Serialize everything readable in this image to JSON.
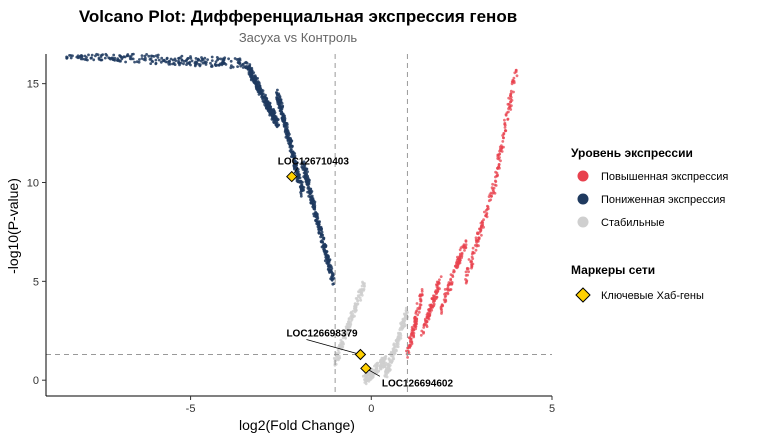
{
  "chart_data": {
    "type": "scatter",
    "title": "Volcano Plot: Дифференциальная экспрессия генов",
    "subtitle": "Засуха vs Контроль",
    "xlabel": "log2(Fold Change)",
    "ylabel": "-log10(P-value)",
    "xlim": [
      -9.0,
      5.0
    ],
    "ylim": [
      -0.8,
      16.5
    ],
    "x_ticks": [
      -5,
      0,
      5
    ],
    "x_tick_labels": [
      "-5",
      "0",
      "5"
    ],
    "y_ticks": [
      0,
      5,
      10,
      15
    ],
    "y_tick_labels": [
      "0",
      "5",
      "10",
      "15"
    ],
    "thresholds": {
      "log2fc": [
        -1,
        1
      ],
      "neg_log10_p": 1.3
    },
    "grid": false,
    "series": [
      {
        "key": "up",
        "color": "#E8414E",
        "approx_bands": [
          {
            "x": [
              1.0,
              1.4
            ],
            "y": [
              1.3,
              4.4
            ]
          },
          {
            "x": [
              1.4,
              1.9
            ],
            "y": [
              2.4,
              5.0
            ]
          },
          {
            "x": [
              1.9,
              2.6
            ],
            "y": [
              3.4,
              7.0
            ]
          },
          {
            "x": [
              2.6,
              3.4
            ],
            "y": [
              5.0,
              9.8
            ]
          },
          {
            "x": [
              3.4,
              4.0
            ],
            "y": [
              9.8,
              15.7
            ]
          }
        ]
      },
      {
        "key": "down",
        "color": "#1F3A5F",
        "approx_bands": [
          {
            "x": [
              -1.05,
              -1.9
            ],
            "y": [
              5.0,
              11.0
            ]
          },
          {
            "x": [
              -1.9,
              -2.6
            ],
            "y": [
              9.5,
              14.5
            ]
          },
          {
            "x": [
              -2.6,
              -3.4
            ],
            "y": [
              13.0,
              15.8
            ]
          },
          {
            "x": [
              -3.4,
              -8.5
            ],
            "y": [
              16.0,
              16.5
            ]
          }
        ]
      },
      {
        "key": "stable",
        "color": "#CFCFCF",
        "approx_bands": [
          {
            "x": [
              -1.0,
              -0.2
            ],
            "y": [
              0.9,
              4.9
            ]
          },
          {
            "x": [
              -0.2,
              0.4
            ],
            "y": [
              0.0,
              1.0
            ]
          },
          {
            "x": [
              0.4,
              1.0
            ],
            "y": [
              0.2,
              3.5
            ]
          }
        ]
      }
    ],
    "hub_genes": [
      {
        "name": "LOC126710403",
        "x": -2.2,
        "y": 10.3
      },
      {
        "name": "LOC126698379",
        "x": -0.3,
        "y": 1.3
      },
      {
        "name": "LOC126694602",
        "x": -0.15,
        "y": 0.6
      }
    ],
    "legend": {
      "placement": "right",
      "expression_title": "Уровень экспрессии",
      "up_label": "Повышенная экспрессия",
      "down_label": "Пониженная экспрессия",
      "stable_label": "Стабильные",
      "markers_title": "Маркеры сети",
      "hub_label": "Ключевые Хаб-гены",
      "hub_color": "#FFD000"
    }
  }
}
